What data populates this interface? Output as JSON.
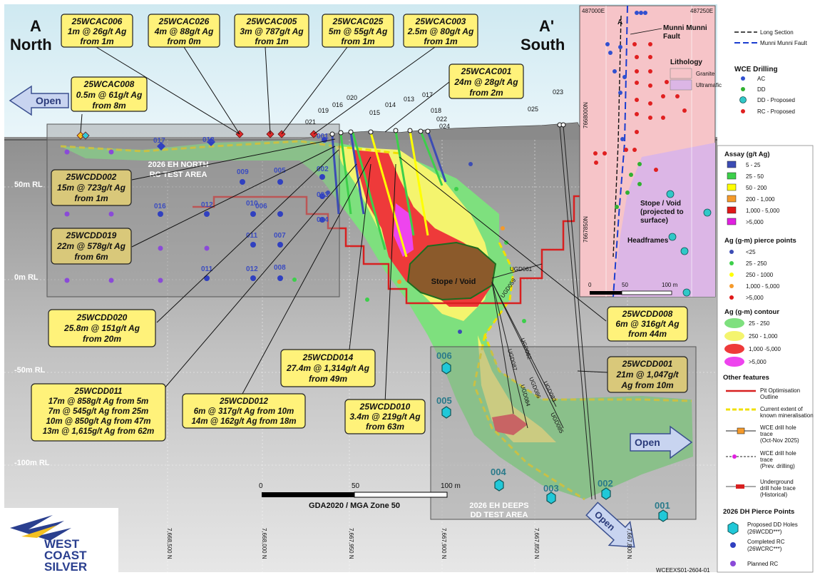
{
  "section": {
    "end_left_letter": "A",
    "end_left_name": "North",
    "end_right_letter": "A'",
    "end_right_name": "South",
    "open_left": "Open",
    "open_right": "Open",
    "open_bottom": "Open"
  },
  "rl_labels": [
    "50m RL",
    "0m RL",
    "-50m RL",
    "-100m RL"
  ],
  "test_areas": {
    "north": [
      "2026 EH NORTH",
      "RC TEST AREA"
    ],
    "deeps": [
      "2026 EH DEEPS",
      "DD TEST AREA"
    ]
  },
  "stope_label": "Stope / Void",
  "top_callouts": [
    {
      "lines": [
        "25WCAC006",
        "1m @ 26g/t Ag",
        "from 1m"
      ]
    },
    {
      "lines": [
        "25WCAC026",
        "4m @ 88g/t Ag",
        "from 0m"
      ]
    },
    {
      "lines": [
        "25WCAC005",
        "3m @ 787g/t Ag",
        "from 1m"
      ]
    },
    {
      "lines": [
        "25WCAC025",
        "5m @ 55g/t Ag",
        "from 1m"
      ]
    },
    {
      "lines": [
        "25WCAC003",
        "2.5m @ 80g/t Ag",
        "from 1m"
      ]
    },
    {
      "lines": [
        "25WCAC008",
        "0.5m @ 61g/t Ag",
        "from 8m"
      ]
    },
    {
      "lines": [
        "25WCAC001",
        "24m @ 28g/t Ag",
        "from 2m"
      ]
    }
  ],
  "dd_callouts": [
    {
      "lines": [
        "25WCDD002",
        "15m @ 723g/t Ag",
        "from 1m"
      ]
    },
    {
      "lines": [
        "25WCDD019",
        "22m @ 578g/t Ag",
        "from 6m"
      ]
    },
    {
      "lines": [
        "25WCDD020",
        "25.8m @ 151g/t Ag",
        "from 20m"
      ]
    },
    {
      "lines": [
        "25WCDD011",
        "17m @ 858g/t Ag from 5m",
        "7m @ 545g/t Ag from 25m",
        "10m @ 850g/t Ag from 47m",
        "13m @ 1,615g/t Ag from 62m"
      ]
    },
    {
      "lines": [
        "25WCDD012",
        "6m @ 317g/t Ag from 10m",
        "14m @ 162g/t Ag from 18m"
      ]
    },
    {
      "lines": [
        "25WCDD014",
        "27.4m @ 1,314g/t Ag",
        "from 49m"
      ]
    },
    {
      "lines": [
        "25WCDD010",
        "3.4m @ 219g/t Ag",
        "from 63m"
      ]
    },
    {
      "lines": [
        "25WCDD008",
        "6m @ 316g/t Ag",
        "from 44m"
      ]
    },
    {
      "lines": [
        "25WCDD001",
        "21m @ 1,047g/t",
        "Ag from 10m"
      ]
    }
  ],
  "hole_ids": [
    "021",
    "019",
    "016",
    "020",
    "015",
    "014",
    "013",
    "017",
    "018",
    "022",
    "024",
    "023",
    "025"
  ],
  "pierce_rc": [
    "017",
    "013",
    "001",
    "002",
    "003",
    "004",
    "005",
    "009",
    "006",
    "010",
    "012",
    "016",
    "011",
    "007",
    "012",
    "011",
    "008"
  ],
  "pierce_dd": [
    "006",
    "005",
    "004",
    "003",
    "002",
    "001"
  ],
  "ug_holes": [
    "UGD061",
    "UGD059",
    "UGD062",
    "UGD087",
    "UGD086",
    "UGD084",
    "UGD083",
    "UGD085"
  ],
  "scale": {
    "ticks": [
      "0",
      "50",
      "100 m"
    ],
    "crs": "GDA2020 / MGA Zone 50"
  },
  "northings": [
    "7,668,500 N",
    "7,668,000 N",
    "7,667,950 N",
    "7,667,900 N",
    "7,667,850 N",
    "7,667,800 N"
  ],
  "logo": [
    "WEST",
    "COAST",
    "SILVER"
  ],
  "doc_id": "WCEEXS01-2604-01",
  "inset": {
    "easting_left": "487000E",
    "easting_right": "487250E",
    "northing_top": "7668000N",
    "northing_bottom": "7667850N",
    "fault_label": [
      "Munni Munni",
      "Fault"
    ],
    "section_letter": "A",
    "stope_label": [
      "Stope / Void",
      "(projected to",
      "surface)"
    ],
    "headframes": "Headframes",
    "scale_ticks": [
      "0",
      "50",
      "100 m"
    ],
    "legend_top": [
      {
        "label": "Long Section"
      },
      {
        "label": "Munni Munni Fault"
      }
    ],
    "lithology_title": "Lithology",
    "lithology": [
      {
        "label": "Granite",
        "color": "#f6c4c8"
      },
      {
        "label": "Ultramafic",
        "color": "#dcb6e6"
      }
    ],
    "drilling_title": "WCE Drilling",
    "drilling": [
      {
        "label": "AC",
        "color": "#3050d0"
      },
      {
        "label": "DD",
        "color": "#30b030"
      },
      {
        "label": "DD - Proposed",
        "color": "#30c8c8"
      },
      {
        "label": "RC - Proposed",
        "color": "#e02020"
      }
    ]
  },
  "legend": {
    "assay_title": "Assay (g/t Ag)",
    "assay": [
      {
        "label": "5 - 25",
        "color": "#3c4cb4"
      },
      {
        "label": "25 - 50",
        "color": "#3ccf4a"
      },
      {
        "label": "50 - 200",
        "color": "#ffff00"
      },
      {
        "label": "200 - 1,000",
        "color": "#f59a2a"
      },
      {
        "label": "1,000 - 5,000",
        "color": "#e01818"
      },
      {
        "label": ">5,000",
        "color": "#e020e0"
      }
    ],
    "pierce_title": "Ag (g-m) pierce points",
    "pierce": [
      {
        "label": "<25",
        "color": "#3c4cb4"
      },
      {
        "label": "25 - 250",
        "color": "#3ccf4a"
      },
      {
        "label": "250 - 1000",
        "color": "#ffff00"
      },
      {
        "label": "1,000 - 5,000",
        "color": "#f59a2a"
      },
      {
        "label": ">5,000",
        "color": "#e01818"
      }
    ],
    "contour_title": "Ag (g-m) contour",
    "contour": [
      {
        "label": "25 - 250",
        "color": "#7ee07e"
      },
      {
        "label": "250 - 1,000",
        "color": "#f4f46e"
      },
      {
        "label": "1,000 -5,000",
        "color": "#ee3a3a"
      },
      {
        "label": ">5,000",
        "color": "#ee44ee"
      }
    ],
    "other_title": "Other features",
    "other": [
      {
        "lines": [
          "Pit Optimisation",
          "Outline"
        ]
      },
      {
        "lines": [
          "Current extent of",
          "known mineralisation"
        ]
      },
      {
        "lines": [
          "WCE drill hole",
          "trace",
          "(Oct-Nov 2025)"
        ]
      },
      {
        "lines": [
          "WCE drill hole",
          "trace",
          "(Prev. drilling)"
        ]
      },
      {
        "lines": [
          "Underground",
          "drill hole trace",
          "(Historical)"
        ]
      }
    ],
    "dh_title": "2026 DH Pierce Points",
    "dh": [
      {
        "lines": [
          "Proposed DD Holes",
          "(26WCDD***)"
        ]
      },
      {
        "lines": [
          "Completed RC",
          "(26WCRC***)"
        ]
      },
      {
        "lines": [
          "Planned RC"
        ]
      }
    ]
  }
}
